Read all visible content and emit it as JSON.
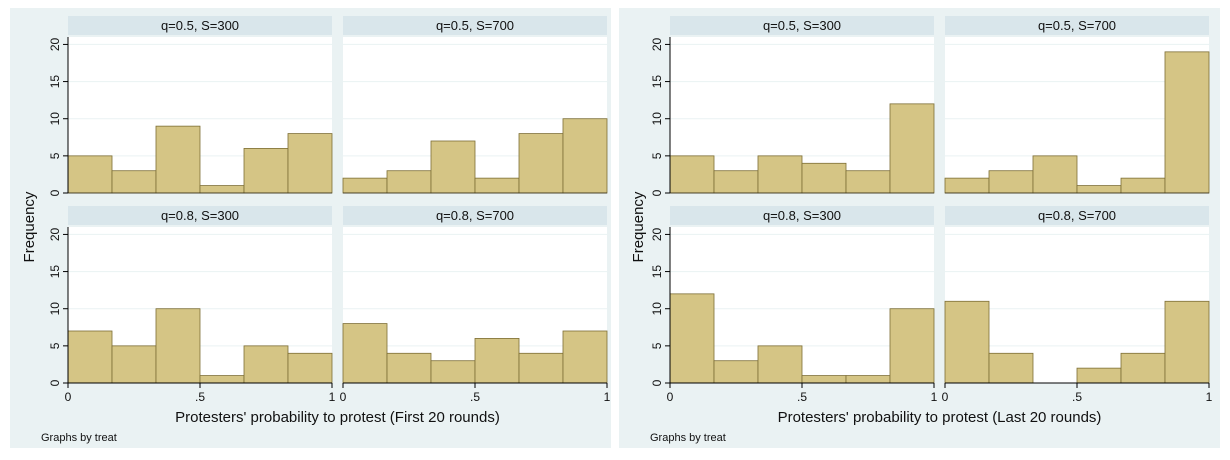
{
  "colors": {
    "plot_region": "#eaf2f3",
    "panel_bg": "#ffffff",
    "strip_bg": "#d9e6eb",
    "bar_fill": "#d5c585",
    "bar_stroke": "#7d6e35",
    "grid": "#eaf2f3",
    "axis": "#000000"
  },
  "chart_data": [
    {
      "type": "bar",
      "subtype": "histogram-by-group",
      "ylabel": "Frequency",
      "xlabel": "Protesters' probability to protest (First 20 rounds)",
      "note": "Graphs by treat",
      "xlim": [
        0,
        1
      ],
      "ylim": [
        0,
        21
      ],
      "x_ticks": [
        0,
        0.5,
        1
      ],
      "x_tick_labels": [
        "0",
        ".5",
        "1"
      ],
      "y_ticks": [
        0,
        5,
        10,
        15,
        20
      ],
      "y_tick_labels": [
        "0",
        "5",
        "10",
        "15",
        "20"
      ],
      "bin_edges": [
        0,
        0.1667,
        0.3333,
        0.5,
        0.6667,
        0.8333,
        1
      ],
      "grid": true,
      "panels": [
        {
          "title": "q=0.5, S=300",
          "values": [
            5,
            3,
            9,
            1,
            6,
            8
          ]
        },
        {
          "title": "q=0.5, S=700",
          "values": [
            2,
            3,
            7,
            2,
            8,
            10
          ]
        },
        {
          "title": "q=0.8, S=300",
          "values": [
            7,
            5,
            10,
            1,
            5,
            4
          ]
        },
        {
          "title": "q=0.8, S=700",
          "values": [
            8,
            4,
            3,
            6,
            4,
            7
          ]
        }
      ]
    },
    {
      "type": "bar",
      "subtype": "histogram-by-group",
      "ylabel": "Frequency",
      "xlabel": "Protesters' probability to protest (Last 20 rounds)",
      "note": "Graphs by treat",
      "xlim": [
        0,
        1
      ],
      "ylim": [
        0,
        21
      ],
      "x_ticks": [
        0,
        0.5,
        1
      ],
      "x_tick_labels": [
        "0",
        ".5",
        "1"
      ],
      "y_ticks": [
        0,
        5,
        10,
        15,
        20
      ],
      "y_tick_labels": [
        "0",
        "5",
        "10",
        "15",
        "20"
      ],
      "bin_edges": [
        0,
        0.1667,
        0.3333,
        0.5,
        0.6667,
        0.8333,
        1
      ],
      "grid": true,
      "panels": [
        {
          "title": "q=0.5, S=300",
          "values": [
            5,
            3,
            5,
            4,
            3,
            12
          ]
        },
        {
          "title": "q=0.5, S=700",
          "values": [
            2,
            3,
            5,
            1,
            2,
            19
          ]
        },
        {
          "title": "q=0.8, S=300",
          "values": [
            12,
            3,
            5,
            1,
            1,
            10
          ]
        },
        {
          "title": "q=0.8, S=700",
          "values": [
            11,
            4,
            0,
            2,
            4,
            11
          ]
        }
      ]
    }
  ]
}
